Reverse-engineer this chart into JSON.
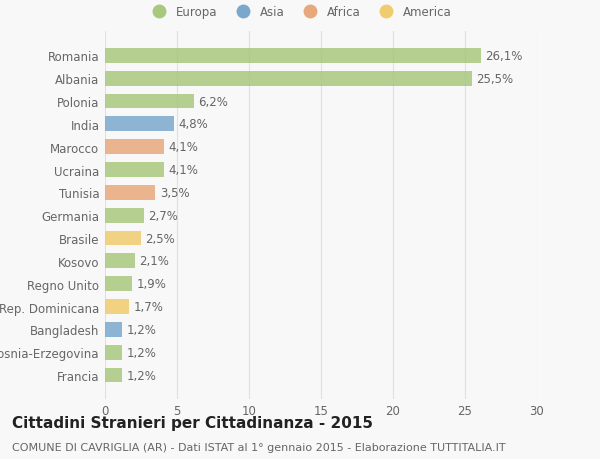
{
  "countries": [
    "Romania",
    "Albania",
    "Polonia",
    "India",
    "Marocco",
    "Ucraina",
    "Tunisia",
    "Germania",
    "Brasile",
    "Kosovo",
    "Regno Unito",
    "Rep. Dominicana",
    "Bangladesh",
    "Bosnia-Erzegovina",
    "Francia"
  ],
  "values": [
    26.1,
    25.5,
    6.2,
    4.8,
    4.1,
    4.1,
    3.5,
    2.7,
    2.5,
    2.1,
    1.9,
    1.7,
    1.2,
    1.2,
    1.2
  ],
  "labels": [
    "26,1%",
    "25,5%",
    "6,2%",
    "4,8%",
    "4,1%",
    "4,1%",
    "3,5%",
    "2,7%",
    "2,5%",
    "2,1%",
    "1,9%",
    "1,7%",
    "1,2%",
    "1,2%",
    "1,2%"
  ],
  "continents": [
    "Europa",
    "Europa",
    "Europa",
    "Asia",
    "Africa",
    "Europa",
    "Africa",
    "Europa",
    "America",
    "Europa",
    "Europa",
    "America",
    "Asia",
    "Europa",
    "Europa"
  ],
  "continent_colors": {
    "Europa": "#a8c87e",
    "Asia": "#7aa8cc",
    "Africa": "#e8a87c",
    "America": "#f0cc6e"
  },
  "legend_order": [
    "Europa",
    "Asia",
    "Africa",
    "America"
  ],
  "title": "Cittadini Stranieri per Cittadinanza - 2015",
  "subtitle": "COMUNE DI CAVRIGLIA (AR) - Dati ISTAT al 1° gennaio 2015 - Elaborazione TUTTITALIA.IT",
  "xlim": [
    0,
    30
  ],
  "xticks": [
    0,
    5,
    10,
    15,
    20,
    25,
    30
  ],
  "background_color": "#f8f8f8",
  "grid_color": "#e0e0e0",
  "bar_height": 0.65,
  "label_fontsize": 8.5,
  "tick_fontsize": 8.5,
  "title_fontsize": 11,
  "subtitle_fontsize": 8
}
